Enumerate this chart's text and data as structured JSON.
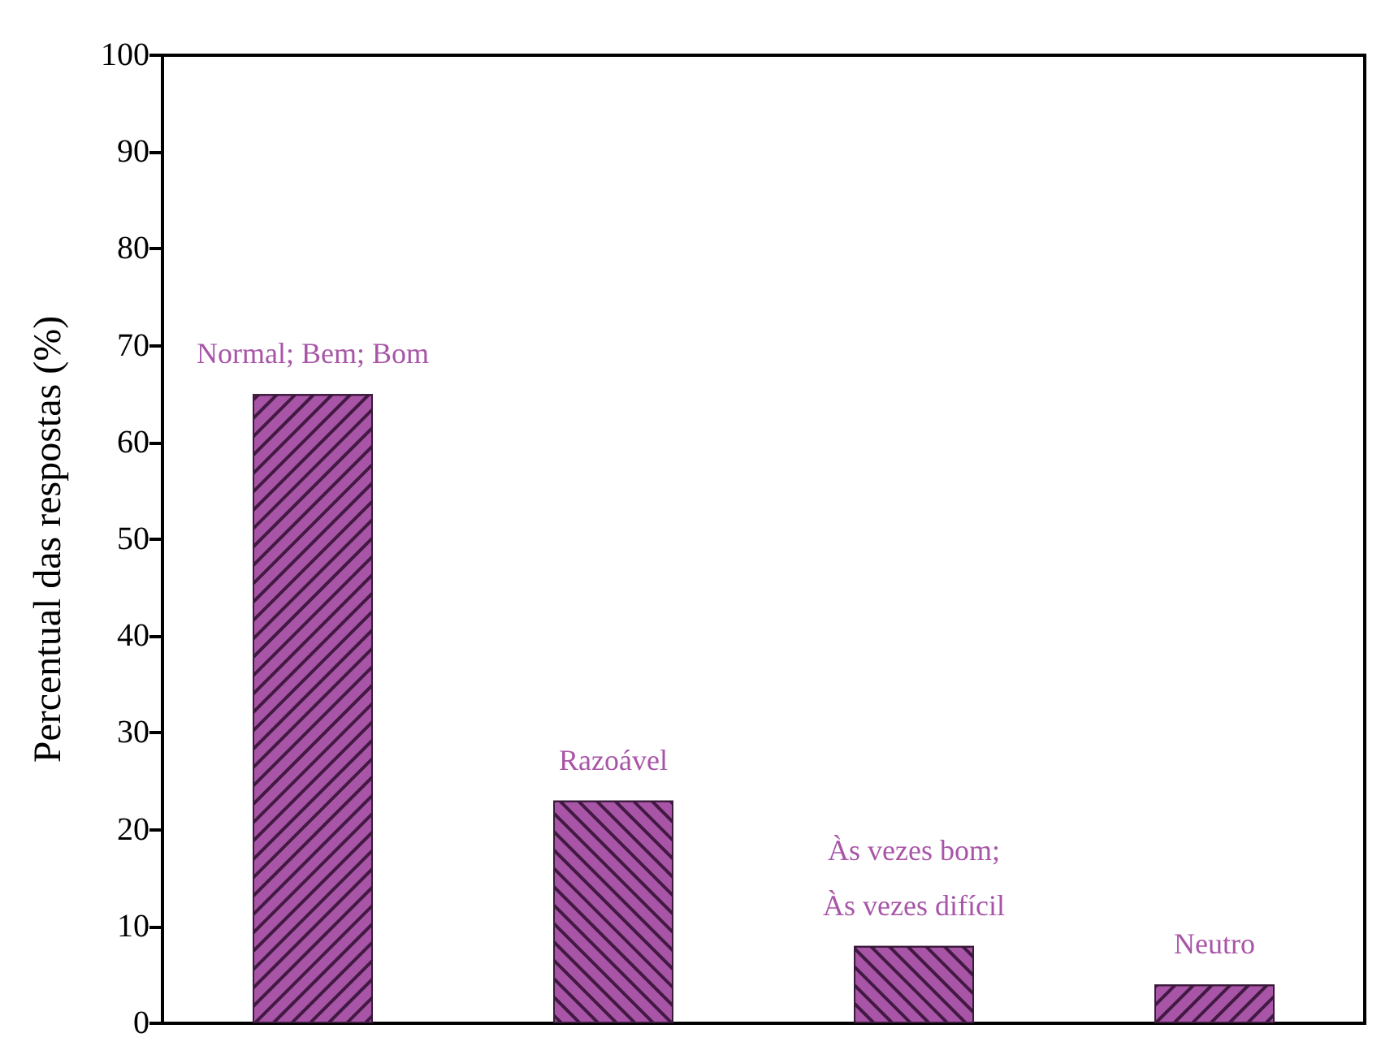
{
  "chart_data": {
    "type": "bar",
    "ylabel": "Percentual das respostas (%)",
    "categories": [
      "Normal; Bem; Bom",
      "Razoável",
      "Às vezes bom;\nÀs vezes difícil",
      "Neutro"
    ],
    "values": [
      65,
      23,
      8,
      4
    ],
    "color": "#a855a8",
    "ylim": [
      0,
      100
    ],
    "yticks": [
      0,
      10,
      20,
      30,
      40,
      50,
      60,
      70,
      80,
      90,
      100
    ],
    "grid": false,
    "tick_labels": "y"
  }
}
